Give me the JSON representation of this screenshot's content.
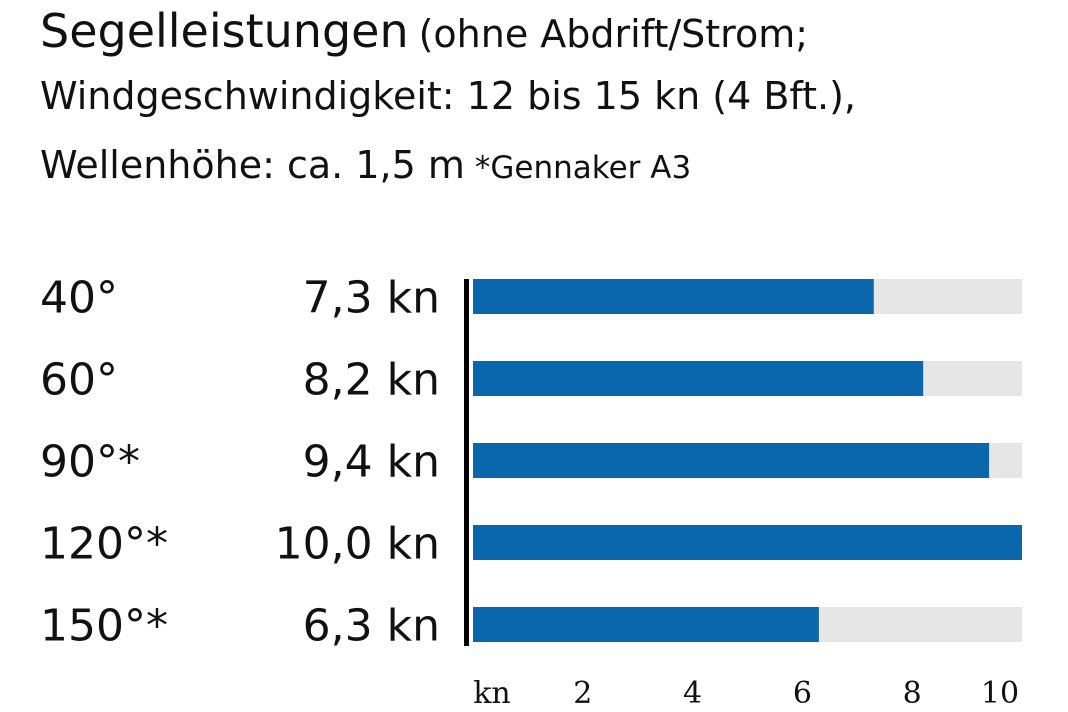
{
  "header": {
    "title": "Segelleistungen",
    "subtitle_part1": "(ohne Abdrift/Strom;",
    "subtitle_part2": "Windgeschwindigkeit: 12 bis 15 kn (4 Bft.),",
    "subtitle_part3": "Wellenhöhe: ca. 1,5 m",
    "footnote": "*Gennaker A3"
  },
  "chart_data": {
    "type": "bar",
    "orientation": "horizontal",
    "categories": [
      "40°",
      "60°",
      "90°*",
      "120°*",
      "150°*"
    ],
    "values": [
      7.3,
      8.2,
      9.4,
      10.0,
      6.3
    ],
    "value_labels": [
      "7,3 kn",
      "8,2 kn",
      "9,4 kn",
      "10,0 kn",
      "6,3 kn"
    ],
    "xlim": [
      0,
      10
    ],
    "x_ticks": [
      2,
      4,
      6,
      8,
      10
    ],
    "x_unit_label": "kn",
    "grid": false,
    "colors": {
      "bar": "#0a66ad",
      "track": "#e6e6e6",
      "axis": "#000000"
    }
  }
}
